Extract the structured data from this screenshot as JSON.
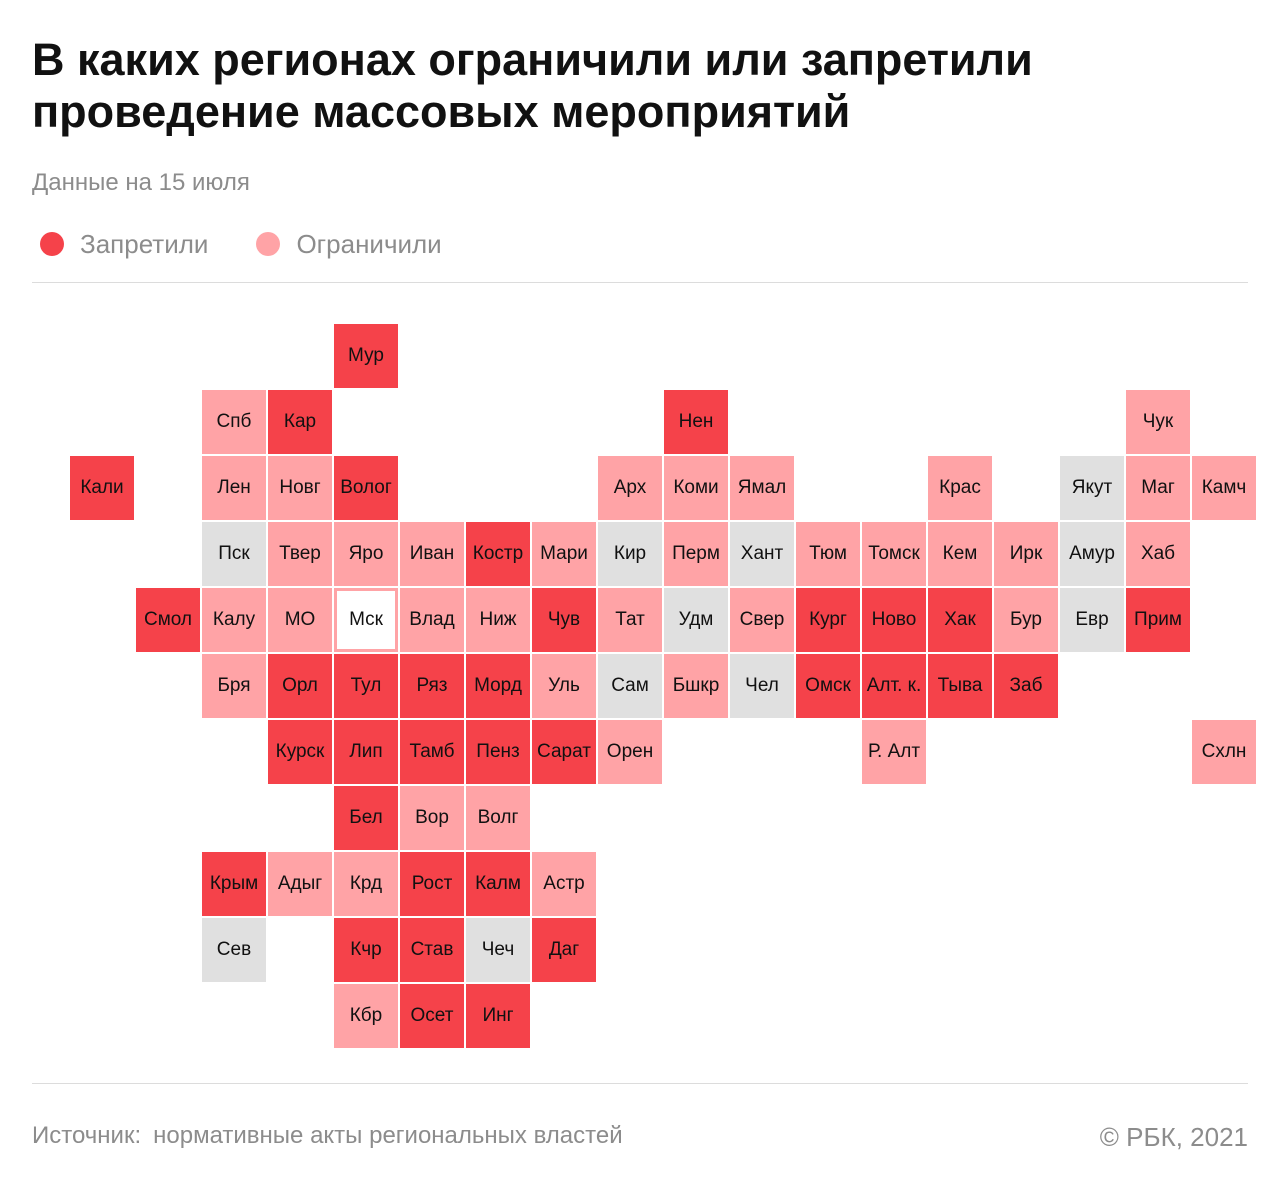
{
  "title": "В каких регионах ограничили или запретили проведение массовых мероприятий",
  "subtitle": "Данные на 15 июля",
  "legend": [
    {
      "label": "Запретили",
      "status": "banned",
      "color": "#f5424a"
    },
    {
      "label": "Ограничили",
      "status": "restricted",
      "color": "#ffa3a6"
    }
  ],
  "colors": {
    "banned": "#f5424a",
    "restricted": "#ffa3a6",
    "none": "#e0e0e0"
  },
  "regions": [
    {
      "label": "Мур",
      "col": 5,
      "row": 0,
      "status": "banned"
    },
    {
      "label": "Спб",
      "col": 3,
      "row": 1,
      "status": "restricted"
    },
    {
      "label": "Кар",
      "col": 4,
      "row": 1,
      "status": "banned"
    },
    {
      "label": "Нен",
      "col": 10,
      "row": 1,
      "status": "banned"
    },
    {
      "label": "Чук",
      "col": 17,
      "row": 1,
      "status": "restricted"
    },
    {
      "label": "Кали",
      "col": 1,
      "row": 2,
      "status": "banned"
    },
    {
      "label": "Лен",
      "col": 3,
      "row": 2,
      "status": "restricted"
    },
    {
      "label": "Новг",
      "col": 4,
      "row": 2,
      "status": "restricted"
    },
    {
      "label": "Волог",
      "col": 5,
      "row": 2,
      "status": "banned"
    },
    {
      "label": "Арх",
      "col": 9,
      "row": 2,
      "status": "restricted"
    },
    {
      "label": "Коми",
      "col": 10,
      "row": 2,
      "status": "restricted"
    },
    {
      "label": "Ямал",
      "col": 11,
      "row": 2,
      "status": "restricted"
    },
    {
      "label": "Крас",
      "col": 14,
      "row": 2,
      "status": "restricted"
    },
    {
      "label": "Якут",
      "col": 16,
      "row": 2,
      "status": "none"
    },
    {
      "label": "Маг",
      "col": 17,
      "row": 2,
      "status": "restricted"
    },
    {
      "label": "Камч",
      "col": 18,
      "row": 2,
      "status": "restricted"
    },
    {
      "label": "Пск",
      "col": 3,
      "row": 3,
      "status": "none"
    },
    {
      "label": "Твер",
      "col": 4,
      "row": 3,
      "status": "restricted"
    },
    {
      "label": "Яро",
      "col": 5,
      "row": 3,
      "status": "restricted"
    },
    {
      "label": "Иван",
      "col": 6,
      "row": 3,
      "status": "restricted"
    },
    {
      "label": "Костр",
      "col": 7,
      "row": 3,
      "status": "banned"
    },
    {
      "label": "Мари",
      "col": 8,
      "row": 3,
      "status": "restricted"
    },
    {
      "label": "Кир",
      "col": 9,
      "row": 3,
      "status": "none"
    },
    {
      "label": "Перм",
      "col": 10,
      "row": 3,
      "status": "restricted"
    },
    {
      "label": "Хант",
      "col": 11,
      "row": 3,
      "status": "none"
    },
    {
      "label": "Тюм",
      "col": 12,
      "row": 3,
      "status": "restricted"
    },
    {
      "label": "Томск",
      "col": 13,
      "row": 3,
      "status": "restricted"
    },
    {
      "label": "Кем",
      "col": 14,
      "row": 3,
      "status": "restricted"
    },
    {
      "label": "Ирк",
      "col": 15,
      "row": 3,
      "status": "restricted"
    },
    {
      "label": "Амур",
      "col": 16,
      "row": 3,
      "status": "none"
    },
    {
      "label": "Хаб",
      "col": 17,
      "row": 3,
      "status": "restricted"
    },
    {
      "label": "Смол",
      "col": 2,
      "row": 4,
      "status": "banned"
    },
    {
      "label": "Калу",
      "col": 3,
      "row": 4,
      "status": "restricted"
    },
    {
      "label": "МО",
      "col": 4,
      "row": 4,
      "status": "restricted"
    },
    {
      "label": "Мск",
      "col": 5,
      "row": 4,
      "status": "outlined"
    },
    {
      "label": "Влад",
      "col": 6,
      "row": 4,
      "status": "restricted"
    },
    {
      "label": "Ниж",
      "col": 7,
      "row": 4,
      "status": "restricted"
    },
    {
      "label": "Чув",
      "col": 8,
      "row": 4,
      "status": "banned"
    },
    {
      "label": "Тат",
      "col": 9,
      "row": 4,
      "status": "restricted"
    },
    {
      "label": "Удм",
      "col": 10,
      "row": 4,
      "status": "none"
    },
    {
      "label": "Свер",
      "col": 11,
      "row": 4,
      "status": "restricted"
    },
    {
      "label": "Кург",
      "col": 12,
      "row": 4,
      "status": "banned"
    },
    {
      "label": "Ново",
      "col": 13,
      "row": 4,
      "status": "banned"
    },
    {
      "label": "Хак",
      "col": 14,
      "row": 4,
      "status": "banned"
    },
    {
      "label": "Бур",
      "col": 15,
      "row": 4,
      "status": "restricted"
    },
    {
      "label": "Евр",
      "col": 16,
      "row": 4,
      "status": "none"
    },
    {
      "label": "Прим",
      "col": 17,
      "row": 4,
      "status": "banned"
    },
    {
      "label": "Бря",
      "col": 3,
      "row": 5,
      "status": "restricted"
    },
    {
      "label": "Орл",
      "col": 4,
      "row": 5,
      "status": "banned"
    },
    {
      "label": "Тул",
      "col": 5,
      "row": 5,
      "status": "banned"
    },
    {
      "label": "Ряз",
      "col": 6,
      "row": 5,
      "status": "banned"
    },
    {
      "label": "Морд",
      "col": 7,
      "row": 5,
      "status": "banned"
    },
    {
      "label": "Уль",
      "col": 8,
      "row": 5,
      "status": "restricted"
    },
    {
      "label": "Сам",
      "col": 9,
      "row": 5,
      "status": "none"
    },
    {
      "label": "Бшкр",
      "col": 10,
      "row": 5,
      "status": "restricted"
    },
    {
      "label": "Чел",
      "col": 11,
      "row": 5,
      "status": "none"
    },
    {
      "label": "Омск",
      "col": 12,
      "row": 5,
      "status": "banned"
    },
    {
      "label": "Алт. к.",
      "col": 13,
      "row": 5,
      "status": "banned"
    },
    {
      "label": "Тыва",
      "col": 14,
      "row": 5,
      "status": "banned"
    },
    {
      "label": "Заб",
      "col": 15,
      "row": 5,
      "status": "banned"
    },
    {
      "label": "Курск",
      "col": 4,
      "row": 6,
      "status": "banned"
    },
    {
      "label": "Лип",
      "col": 5,
      "row": 6,
      "status": "banned"
    },
    {
      "label": "Тамб",
      "col": 6,
      "row": 6,
      "status": "banned"
    },
    {
      "label": "Пенз",
      "col": 7,
      "row": 6,
      "status": "banned"
    },
    {
      "label": "Сарат",
      "col": 8,
      "row": 6,
      "status": "banned"
    },
    {
      "label": "Орен",
      "col": 9,
      "row": 6,
      "status": "restricted"
    },
    {
      "label": "Р. Алт",
      "col": 13,
      "row": 6,
      "status": "restricted"
    },
    {
      "label": "Схлн",
      "col": 18,
      "row": 6,
      "status": "restricted"
    },
    {
      "label": "Бел",
      "col": 5,
      "row": 7,
      "status": "banned"
    },
    {
      "label": "Вор",
      "col": 6,
      "row": 7,
      "status": "restricted"
    },
    {
      "label": "Волг",
      "col": 7,
      "row": 7,
      "status": "restricted"
    },
    {
      "label": "Крым",
      "col": 3,
      "row": 8,
      "status": "banned"
    },
    {
      "label": "Адыг",
      "col": 4,
      "row": 8,
      "status": "restricted"
    },
    {
      "label": "Крд",
      "col": 5,
      "row": 8,
      "status": "restricted"
    },
    {
      "label": "Рост",
      "col": 6,
      "row": 8,
      "status": "banned"
    },
    {
      "label": "Калм",
      "col": 7,
      "row": 8,
      "status": "banned"
    },
    {
      "label": "Астр",
      "col": 8,
      "row": 8,
      "status": "restricted"
    },
    {
      "label": "Сев",
      "col": 3,
      "row": 9,
      "status": "none"
    },
    {
      "label": "Кчр",
      "col": 5,
      "row": 9,
      "status": "banned"
    },
    {
      "label": "Став",
      "col": 6,
      "row": 9,
      "status": "banned"
    },
    {
      "label": "Чеч",
      "col": 7,
      "row": 9,
      "status": "none"
    },
    {
      "label": "Даг",
      "col": 8,
      "row": 9,
      "status": "banned"
    },
    {
      "label": "Кбр",
      "col": 5,
      "row": 10,
      "status": "restricted"
    },
    {
      "label": "Осет",
      "col": 6,
      "row": 10,
      "status": "banned"
    },
    {
      "label": "Инг",
      "col": 7,
      "row": 10,
      "status": "banned"
    }
  ],
  "footer": {
    "source_label": "Источник:",
    "source_text": "нормативные акты региональных властей",
    "copyright": "© РБК, 2021"
  }
}
